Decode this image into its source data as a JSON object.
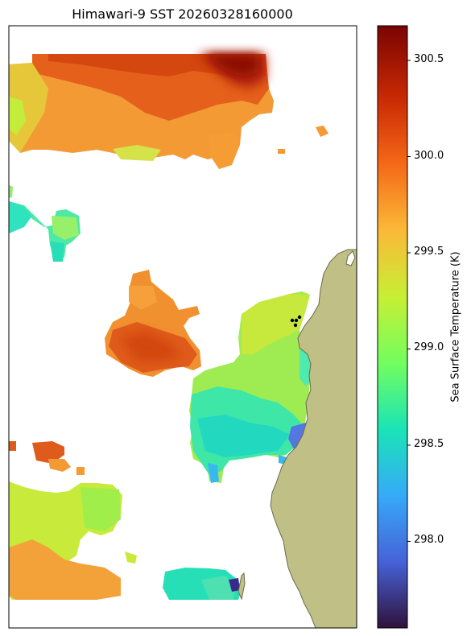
{
  "title": "Himawari-9 SST 20260328160000",
  "colorbar": {
    "label": "Sea Surface Temperature (K)",
    "ticks": [
      "300.5",
      "300.0",
      "299.5",
      "299.0",
      "298.5",
      "298.0"
    ],
    "tick_values": [
      300.5,
      300.0,
      299.5,
      299.0,
      298.5,
      298.0
    ],
    "vmin": 297.55,
    "vmax": 300.68,
    "colormap": "turbo",
    "colors": [
      "#30123b",
      "#4662d7",
      "#36aaf9",
      "#1ae4b6",
      "#72fe5e",
      "#c7ef34",
      "#fbb938",
      "#f56918",
      "#c92903",
      "#7a0403"
    ]
  },
  "map": {
    "land_color": "#bfbf86",
    "coast_color": "#6b6b4a",
    "station_color": "#000000"
  }
}
